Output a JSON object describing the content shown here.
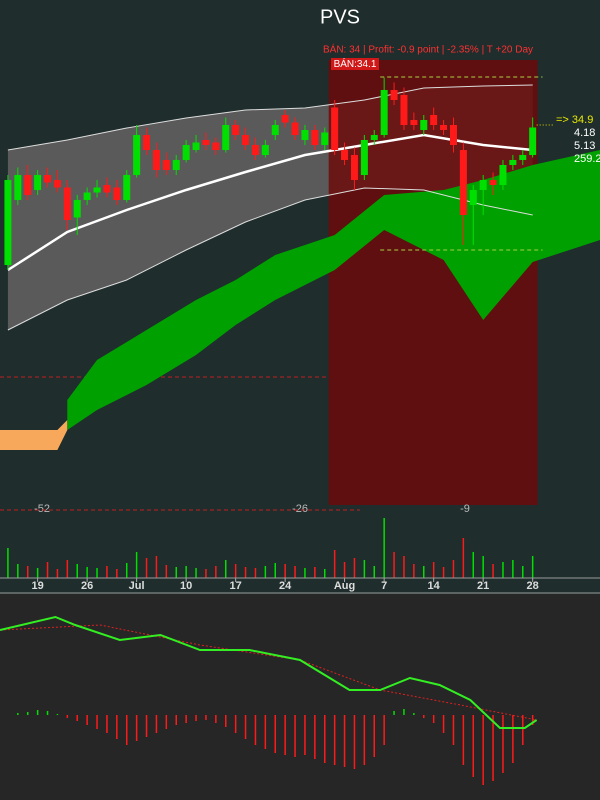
{
  "chart_data": {
    "type": "candlestick",
    "title": "PVS",
    "subtitle": "BÁN:  34 | Profit: -0.9 point | -2.35% | T +20 Day",
    "signal_label": "BÁN:34.1",
    "side_labels": [
      "=>  34.9",
      "4.18",
      "5.13",
      "259.2"
    ],
    "count_labels": [
      "-52",
      "-26",
      "-9"
    ],
    "xlim": [
      -0.8,
      59.8
    ],
    "ylim": [
      20,
      40
    ],
    "xticks": [
      {
        "value": 3,
        "label": "19"
      },
      {
        "value": 8,
        "label": "26"
      },
      {
        "value": 13,
        "label": "Jul"
      },
      {
        "value": 18,
        "label": "10"
      },
      {
        "value": 23,
        "label": "17"
      },
      {
        "value": 28,
        "label": "24"
      },
      {
        "value": 34,
        "label": "Aug"
      },
      {
        "value": 38,
        "label": "7"
      },
      {
        "value": 43,
        "label": "14"
      },
      {
        "value": 48,
        "label": "21"
      },
      {
        "value": 53,
        "label": "28"
      }
    ],
    "up_color": "#00e000",
    "down_color": "#ff1a1a",
    "candles": [
      [
        29.4,
        33.0,
        29.2,
        32.8
      ],
      [
        32.0,
        33.3,
        31.8,
        33.0
      ],
      [
        33.0,
        33.4,
        32.0,
        32.2
      ],
      [
        32.4,
        33.2,
        32.2,
        33.0
      ],
      [
        33.0,
        33.3,
        32.5,
        32.7
      ],
      [
        32.8,
        33.2,
        32.3,
        32.5
      ],
      [
        32.5,
        32.8,
        30.8,
        31.2
      ],
      [
        31.3,
        32.2,
        30.6,
        32.0
      ],
      [
        32.0,
        32.5,
        31.8,
        32.3
      ],
      [
        32.3,
        32.8,
        32.1,
        32.5
      ],
      [
        32.6,
        32.9,
        32.1,
        32.3
      ],
      [
        32.5,
        32.8,
        31.8,
        32.0
      ],
      [
        32.0,
        33.2,
        31.9,
        33.0
      ],
      [
        33.0,
        35.0,
        32.9,
        34.6
      ],
      [
        34.6,
        34.9,
        33.8,
        34.0
      ],
      [
        34.0,
        34.3,
        32.9,
        33.2
      ],
      [
        33.6,
        33.9,
        33.0,
        33.2
      ],
      [
        33.2,
        33.8,
        33.0,
        33.6
      ],
      [
        33.6,
        34.4,
        33.5,
        34.2
      ],
      [
        34.0,
        34.6,
        33.9,
        34.3
      ],
      [
        34.4,
        34.7,
        34.0,
        34.2
      ],
      [
        34.3,
        34.5,
        33.8,
        34.0
      ],
      [
        34.0,
        35.3,
        33.9,
        35.0
      ],
      [
        35.0,
        35.2,
        34.4,
        34.6
      ],
      [
        34.6,
        34.9,
        34.0,
        34.2
      ],
      [
        34.2,
        34.5,
        33.6,
        33.8
      ],
      [
        33.8,
        34.4,
        33.7,
        34.2
      ],
      [
        34.6,
        35.2,
        34.4,
        35.0
      ],
      [
        35.4,
        35.6,
        34.9,
        35.1
      ],
      [
        35.1,
        35.3,
        34.4,
        34.6
      ],
      [
        34.4,
        35.0,
        34.2,
        34.8
      ],
      [
        34.8,
        35.0,
        34.0,
        34.2
      ],
      [
        34.2,
        34.9,
        34.0,
        34.7
      ],
      [
        35.7,
        36.0,
        33.8,
        34.0
      ],
      [
        34.0,
        34.3,
        33.4,
        33.6
      ],
      [
        33.8,
        34.1,
        32.4,
        32.8
      ],
      [
        33.0,
        34.6,
        32.8,
        34.4
      ],
      [
        34.4,
        34.8,
        34.2,
        34.6
      ],
      [
        34.6,
        36.9,
        34.5,
        36.4
      ],
      [
        36.4,
        36.7,
        35.8,
        36.0
      ],
      [
        36.2,
        36.5,
        34.8,
        35.0
      ],
      [
        35.2,
        35.5,
        34.8,
        35.0
      ],
      [
        34.8,
        35.4,
        34.6,
        35.2
      ],
      [
        35.4,
        35.7,
        34.8,
        35.0
      ],
      [
        35.0,
        35.2,
        34.6,
        34.8
      ],
      [
        35.0,
        35.3,
        33.9,
        34.2
      ],
      [
        34.0,
        34.3,
        30.2,
        31.4
      ],
      [
        31.8,
        32.6,
        30.2,
        32.4
      ],
      [
        32.4,
        33.0,
        31.4,
        32.8
      ],
      [
        32.8,
        33.1,
        32.2,
        32.6
      ],
      [
        32.6,
        33.6,
        32.4,
        33.4
      ],
      [
        33.4,
        33.8,
        33.2,
        33.6
      ],
      [
        33.6,
        34.0,
        33.4,
        33.8
      ],
      [
        33.8,
        35.3,
        33.7,
        34.9
      ]
    ],
    "bands": {
      "x": [
        0,
        6,
        12,
        18,
        24,
        30,
        36,
        42,
        48,
        53
      ],
      "upper": [
        34.0,
        34.4,
        34.88,
        35.28,
        35.6,
        35.68,
        36.0,
        36.48,
        36.56,
        36.6
      ],
      "mid": [
        29.2,
        30.72,
        31.6,
        32.4,
        33.12,
        33.8,
        34.2,
        34.6,
        34.2,
        34.0
      ],
      "lower": [
        26.8,
        28.0,
        28.8,
        30.0,
        31.12,
        32.0,
        32.48,
        32.4,
        31.8,
        31.4
      ]
    },
    "cloud": {
      "x": [
        6,
        9,
        14,
        19,
        23,
        27,
        33,
        38,
        44,
        48,
        53,
        59.8
      ],
      "top": [
        24.0,
        25.6,
        26.8,
        28.0,
        28.8,
        29.8,
        30.6,
        32.2,
        32.4,
        32.8,
        33.4,
        34.0
      ],
      "bottom": [
        22.8,
        23.6,
        24.6,
        25.8,
        27.0,
        28.0,
        29.2,
        30.8,
        29.6,
        27.2,
        29.52,
        30.4
      ]
    },
    "cloud2": {
      "x": [
        -0.8,
        5,
        6
      ],
      "top": [
        22.8,
        22.8,
        23.2
      ],
      "bottom": [
        22.0,
        22.0,
        22.8
      ]
    },
    "sell_zone": {
      "x": [
        32.4,
        53.5
      ],
      "top": 37.6,
      "levels": [
        36.92,
        30.0
      ]
    },
    "ref_level": 24.92,
    "volume": [
      30,
      14,
      12,
      10,
      16,
      9,
      18,
      14,
      11,
      10,
      12,
      9,
      15,
      26,
      20,
      22,
      13,
      11,
      12,
      10,
      9,
      12,
      18,
      14,
      11,
      10,
      12,
      15,
      14,
      12,
      10,
      11,
      9,
      28,
      16,
      20,
      18,
      12,
      60,
      26,
      22,
      14,
      12,
      16,
      11,
      18,
      40,
      26,
      22,
      14,
      16,
      18,
      12,
      22
    ],
    "volume_lim": [
      0,
      62
    ],
    "histogram": [
      0,
      2,
      3,
      5,
      4,
      1,
      -3,
      -6,
      -10,
      -14,
      -18,
      -24,
      -30,
      -26,
      -22,
      -18,
      -14,
      -10,
      -8,
      -6,
      -5,
      -8,
      -12,
      -18,
      -24,
      -30,
      -34,
      -38,
      -40,
      -42,
      -40,
      -44,
      -48,
      -50,
      -52,
      -54,
      -50,
      -42,
      -30,
      4,
      6,
      2,
      -3,
      -8,
      -18,
      -30,
      -50,
      -62,
      -70,
      -66,
      -58,
      -48,
      -30,
      -10
    ],
    "histogram_lim": [
      -80,
      120
    ],
    "osc_lim": [
      0,
      200
    ],
    "osc_line": {
      "color": "#33ee22",
      "x": [
        -0.8,
        4.8,
        6.8,
        11.3,
        15.4,
        19.4,
        24.4,
        29.5,
        34.5,
        37.6,
        40.6,
        43.6,
        46.7,
        49.7,
        52.2,
        53.4
      ],
      "values": [
        165,
        178,
        170,
        155,
        160,
        145,
        145,
        135,
        105,
        105,
        117,
        110,
        95,
        67,
        67,
        75
      ]
    },
    "osc_signal": {
      "color": "#e02020",
      "x": [
        -0.8,
        9.3,
        19.4,
        29.5,
        37.6,
        45.7,
        53.4
      ],
      "values": [
        165,
        170,
        150,
        135,
        105,
        90,
        75
      ]
    }
  }
}
